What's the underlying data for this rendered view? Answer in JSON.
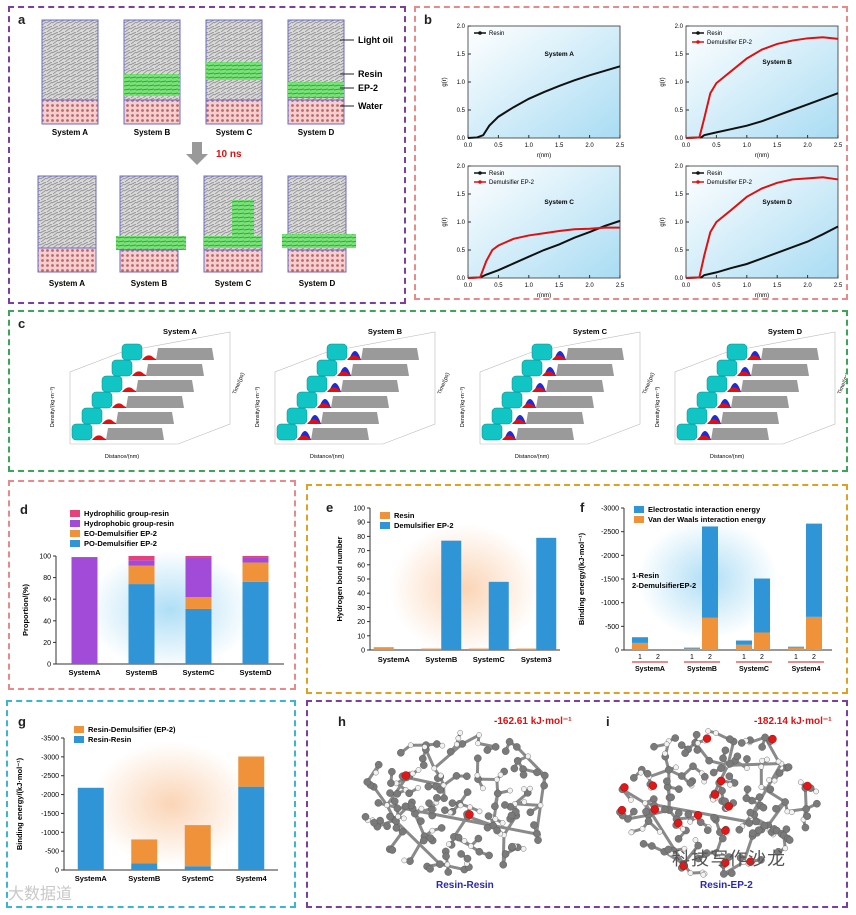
{
  "labels": {
    "a": "a",
    "b": "b",
    "c": "c",
    "d": "d",
    "e": "e",
    "f": "f",
    "g": "g",
    "h": "h",
    "i": "i"
  },
  "panel_a": {
    "systems": [
      "System A",
      "System B",
      "System C",
      "System D"
    ],
    "legend": [
      "Light oil",
      "Resin",
      "EP-2",
      "Water"
    ],
    "time": "10 ns"
  },
  "panel_b": {
    "charts": [
      {
        "title": "System A",
        "legend": [
          "Resin"
        ],
        "xlabel": "r(nm)",
        "ylabel": "g(r)"
      },
      {
        "title": "System B",
        "legend": [
          "Resin",
          "Demulsifier EP-2"
        ],
        "xlabel": "r(nm)",
        "ylabel": "g(r)"
      },
      {
        "title": "System C",
        "legend": [
          "Resin",
          "Demulsifier EP-2"
        ],
        "xlabel": "r(nm)",
        "ylabel": "g(r)"
      },
      {
        "title": "System D",
        "legend": [
          "Resin",
          "Demulsifier EP-2"
        ],
        "xlabel": "r(nm)",
        "ylabel": "g(r)"
      }
    ],
    "xticks": [
      "0.0",
      "0.5",
      "1.0",
      "1.5",
      "2.0",
      "2.5"
    ],
    "yticks": [
      "0.0",
      "0.5",
      "1.0",
      "1.5",
      "2.0"
    ]
  },
  "panel_c": {
    "titles": [
      "System A",
      "System B",
      "System C",
      "System D"
    ],
    "xlabel": "Distance/(nm)",
    "ylabel": "Density/(kg·m⁻³)",
    "zlabel": "Time/(ps)"
  },
  "colors": {
    "resin_line": "#111111",
    "ep2_line": "#e01010",
    "orange": "#f0923a",
    "blue": "#2f95d6",
    "purple": "#a24bd8",
    "pink": "#e8407a",
    "border_purple": "#7b3fa0",
    "border_pink": "#e88a8a",
    "border_green": "#3aa657",
    "border_orange": "#e0a020",
    "border_teal": "#38b6d8"
  },
  "chart_data": [
    {
      "type": "line",
      "title": "System A",
      "xlabel": "r(nm)",
      "ylabel": "g(r)",
      "xlim": [
        0,
        2.5
      ],
      "ylim": [
        0,
        2
      ],
      "series": [
        {
          "name": "Resin",
          "x": [
            0,
            0.15,
            0.25,
            0.35,
            0.5,
            0.75,
            1.0,
            1.25,
            1.5,
            1.75,
            2.0,
            2.25,
            2.5
          ],
          "y": [
            0,
            0.01,
            0.05,
            0.22,
            0.38,
            0.55,
            0.7,
            0.82,
            0.93,
            1.03,
            1.12,
            1.2,
            1.28
          ]
        }
      ]
    },
    {
      "type": "line",
      "title": "System B",
      "xlabel": "r(nm)",
      "ylabel": "g(r)",
      "xlim": [
        0,
        2.5
      ],
      "ylim": [
        0,
        2
      ],
      "series": [
        {
          "name": "Resin",
          "x": [
            0,
            0.25,
            0.3,
            0.5,
            0.75,
            1.0,
            1.25,
            1.5,
            1.75,
            2.0,
            2.25,
            2.5
          ],
          "y": [
            0,
            0.01,
            0.05,
            0.1,
            0.16,
            0.22,
            0.3,
            0.4,
            0.5,
            0.6,
            0.7,
            0.8
          ]
        },
        {
          "name": "Demulsifier EP-2",
          "x": [
            0,
            0.22,
            0.3,
            0.4,
            0.5,
            0.75,
            1.0,
            1.25,
            1.5,
            1.75,
            2.0,
            2.25,
            2.5
          ],
          "y": [
            0,
            0.01,
            0.35,
            0.8,
            0.98,
            1.2,
            1.42,
            1.58,
            1.68,
            1.74,
            1.78,
            1.8,
            1.77
          ]
        }
      ]
    },
    {
      "type": "line",
      "title": "System C",
      "xlabel": "r(nm)",
      "ylabel": "g(r)",
      "xlim": [
        0,
        2.5
      ],
      "ylim": [
        0,
        2
      ],
      "series": [
        {
          "name": "Resin",
          "x": [
            0,
            0.2,
            0.3,
            0.5,
            0.75,
            1.0,
            1.25,
            1.5,
            1.75,
            2.0,
            2.25,
            2.5
          ],
          "y": [
            0,
            0.01,
            0.06,
            0.14,
            0.26,
            0.38,
            0.5,
            0.6,
            0.72,
            0.82,
            0.93,
            1.02
          ]
        },
        {
          "name": "Demulsifier EP-2",
          "x": [
            0,
            0.2,
            0.3,
            0.4,
            0.5,
            0.75,
            1.0,
            1.25,
            1.5,
            1.75,
            2.0,
            2.25,
            2.5
          ],
          "y": [
            0,
            0.01,
            0.3,
            0.5,
            0.58,
            0.7,
            0.76,
            0.8,
            0.84,
            0.87,
            0.88,
            0.9,
            0.9
          ]
        }
      ]
    },
    {
      "type": "line",
      "title": "System D",
      "xlabel": "r(nm)",
      "ylabel": "g(r)",
      "xlim": [
        0,
        2.5
      ],
      "ylim": [
        0,
        2
      ],
      "series": [
        {
          "name": "Resin",
          "x": [
            0,
            0.25,
            0.3,
            0.5,
            0.75,
            1.0,
            1.25,
            1.5,
            1.75,
            2.0,
            2.25,
            2.5
          ],
          "y": [
            0,
            0.01,
            0.05,
            0.1,
            0.18,
            0.25,
            0.35,
            0.45,
            0.55,
            0.65,
            0.78,
            0.92
          ]
        },
        {
          "name": "Demulsifier EP-2",
          "x": [
            0,
            0.22,
            0.3,
            0.4,
            0.5,
            0.75,
            1.0,
            1.25,
            1.5,
            1.75,
            2.0,
            2.25,
            2.5
          ],
          "y": [
            0,
            0.01,
            0.4,
            0.82,
            1.0,
            1.22,
            1.45,
            1.6,
            1.7,
            1.76,
            1.78,
            1.8,
            1.76
          ]
        }
      ]
    },
    {
      "type": "bar",
      "stacked": true,
      "title": "",
      "ylabel": "Proportion/(%)",
      "ylim": [
        0,
        100
      ],
      "yticks": [
        0,
        20,
        40,
        60,
        80,
        100
      ],
      "categories": [
        "SystemA",
        "SystemB",
        "SystemC",
        "SystemD"
      ],
      "series": [
        {
          "name": "PO-Demulsifier EP-2",
          "values": [
            0,
            74,
            51,
            76
          ]
        },
        {
          "name": "EO-Demulsifier EP-2",
          "values": [
            0,
            17,
            11,
            18
          ]
        },
        {
          "name": "Hydrophobic group-resin",
          "values": [
            99,
            5,
            37,
            5
          ]
        },
        {
          "name": "Hydrophilic group-resin",
          "values": [
            0,
            4,
            1,
            1
          ]
        }
      ],
      "legend_order": [
        "Hydrophilic group-resin",
        "Hydrophobic group-resin",
        "EO-Demulsifier EP-2",
        "PO-Demulsifier EP-2"
      ]
    },
    {
      "type": "bar",
      "grouped": true,
      "ylabel": "Hydrogen bond number",
      "ylim": [
        0,
        100
      ],
      "yticks": [
        0,
        10,
        20,
        30,
        40,
        50,
        60,
        70,
        80,
        90,
        100
      ],
      "categories": [
        "SystemA",
        "SystemB",
        "SystemC",
        "System3"
      ],
      "series": [
        {
          "name": "Resin",
          "values": [
            2,
            1,
            1,
            1
          ]
        },
        {
          "name": "Demulsifier EP-2",
          "values": [
            0,
            77,
            48,
            79
          ]
        }
      ]
    },
    {
      "type": "bar",
      "stacked": true,
      "ylabel": "Binding energy/(kJ·mol⁻¹)",
      "ylim": [
        0,
        -3000
      ],
      "yticks": [
        0,
        -500,
        -1000,
        -1500,
        -2000,
        -2500,
        -3000
      ],
      "categories": [
        "SystemA",
        "SystemB",
        "SystemC",
        "System4"
      ],
      "subcategories": [
        "1",
        "2"
      ],
      "annotation": [
        "1-Resin",
        "2-DemulsifierEP-2"
      ],
      "series": [
        {
          "name": "Van der Waals interaction energy",
          "values": [
            [
              -150,
              0
            ],
            [
              -30,
              -680
            ],
            [
              -110,
              -370
            ],
            [
              -50,
              -700
            ]
          ]
        },
        {
          "name": "Electrostatic interaction energy",
          "values": [
            [
              -120,
              0
            ],
            [
              -20,
              -1930
            ],
            [
              -90,
              -1140
            ],
            [
              -20,
              -1970
            ]
          ]
        }
      ]
    },
    {
      "type": "bar",
      "stacked": true,
      "ylabel": "Binding energy/(kJ·mol⁻¹)",
      "ylim": [
        0,
        -3500
      ],
      "yticks": [
        0,
        -500,
        -1000,
        -1500,
        -2000,
        -2500,
        -3000,
        -3500
      ],
      "categories": [
        "SystemA",
        "SystemB",
        "SystemC",
        "System4"
      ],
      "series": [
        {
          "name": "Resin-Resin",
          "values": [
            -2180,
            -180,
            -100,
            -2210
          ]
        },
        {
          "name": "Resin-Demulsifier (EP-2)",
          "values": [
            0,
            -630,
            -1090,
            -800
          ]
        }
      ]
    }
  ],
  "panel_h": {
    "energy": "-162.61 kJ·mol⁻¹",
    "label": "Resin-Resin"
  },
  "panel_i": {
    "energy": "-182.14 kJ·mol⁻¹",
    "label": "Resin-EP-2"
  },
  "watermarks": {
    "left": "大数据道",
    "right": "科技写作沙龙"
  }
}
